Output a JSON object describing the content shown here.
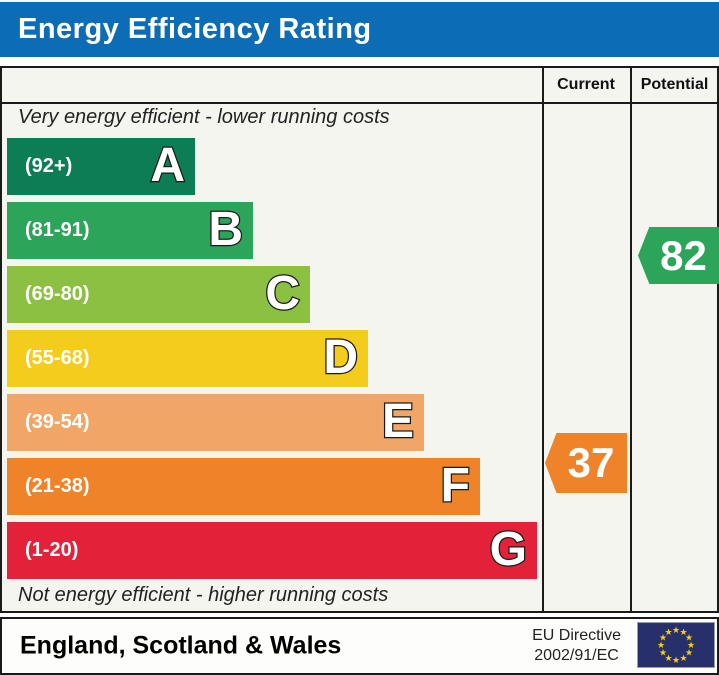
{
  "title": "Energy Efficiency Rating",
  "columns": {
    "current": "Current",
    "potential": "Potential"
  },
  "captions": {
    "top": "Very energy efficient - lower running costs",
    "bottom": "Not energy efficient - higher running costs"
  },
  "bands": [
    {
      "letter": "A",
      "label": "(92+)",
      "color": "#0c7d55"
    },
    {
      "letter": "B",
      "label": "(81-91)",
      "color": "#2ca45a"
    },
    {
      "letter": "C",
      "label": "(69-80)",
      "color": "#8cc043"
    },
    {
      "letter": "D",
      "label": "(55-68)",
      "color": "#f4cd1c"
    },
    {
      "letter": "E",
      "label": "(39-54)",
      "color": "#f1a566"
    },
    {
      "letter": "F",
      "label": "(21-38)",
      "color": "#ee8329"
    },
    {
      "letter": "G",
      "label": "(1-20)",
      "color": "#e32138"
    }
  ],
  "ratings": {
    "current": {
      "value": "37",
      "color": "#ee8329"
    },
    "potential": {
      "value": "82",
      "color": "#2ca45a"
    }
  },
  "footer": {
    "region": "England, Scotland & Wales",
    "directive_line1": "EU Directive",
    "directive_line2": "2002/91/EC"
  },
  "colors": {
    "title_bar_blue": "#0c6cb5",
    "chart_background": "#f4f5ef",
    "border_black": "#1a1a1a",
    "eu_flag_navy": "#27306b",
    "eu_star_yellow": "#f8d013"
  },
  "chart_data": {
    "type": "bar",
    "title": "Energy Efficiency Rating",
    "categories": [
      "A",
      "B",
      "C",
      "D",
      "E",
      "F",
      "G"
    ],
    "band_ranges": [
      "92+",
      "81-91",
      "69-80",
      "55-68",
      "39-54",
      "21-38",
      "1-20"
    ],
    "band_colors": [
      "#0c7d55",
      "#2ca45a",
      "#8cc043",
      "#f4cd1c",
      "#f1a566",
      "#ee8329",
      "#e32138"
    ],
    "bar_relative_widths": [
      188,
      246,
      303,
      361,
      417,
      473,
      530
    ],
    "current_rating": 37,
    "current_band": "F",
    "potential_rating": 82,
    "potential_band": "B",
    "scale_min": 1,
    "scale_max": 100,
    "top_caption": "Very energy efficient - lower running costs",
    "bottom_caption": "Not energy efficient - higher running costs",
    "columns": [
      "Current",
      "Potential"
    ],
    "region": "England, Scotland & Wales",
    "directive": "EU Directive 2002/91/EC"
  }
}
